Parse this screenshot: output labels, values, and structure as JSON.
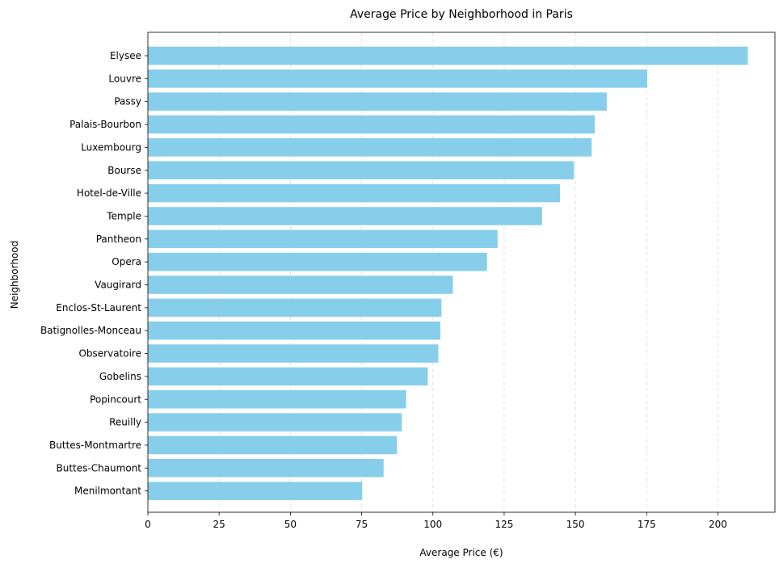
{
  "chart_data": {
    "type": "bar",
    "orientation": "horizontal",
    "title": "Average Price by Neighborhood in Paris",
    "xlabel": "Average Price (€)",
    "ylabel": "Neighborhood",
    "xlim": [
      0,
      220
    ],
    "xticks": [
      0,
      25,
      50,
      75,
      100,
      125,
      150,
      175,
      200
    ],
    "grid": "x-dashed",
    "bar_color": "#87CEEB",
    "categories": [
      "Elysee",
      "Louvre",
      "Passy",
      "Palais-Bourbon",
      "Luxembourg",
      "Bourse",
      "Hotel-de-Ville",
      "Temple",
      "Pantheon",
      "Opera",
      "Vaugirard",
      "Enclos-St-Laurent",
      "Batignolles-Monceau",
      "Observatoire",
      "Gobelins",
      "Popincourt",
      "Reuilly",
      "Buttes-Montmartre",
      "Buttes-Chaumont",
      "Menilmontant"
    ],
    "values": [
      210.5,
      175.2,
      161.0,
      156.8,
      155.7,
      149.5,
      144.6,
      138.3,
      122.7,
      119.0,
      107.0,
      103.0,
      102.6,
      101.9,
      98.2,
      90.6,
      89.1,
      87.4,
      82.7,
      75.2
    ]
  }
}
